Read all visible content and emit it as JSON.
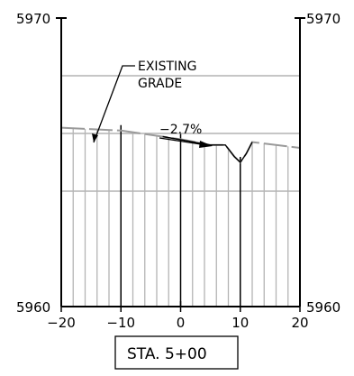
{
  "chart_data": {
    "type": "cross-section",
    "station_label": "STA. 5+00",
    "x_ticks": [
      "−20",
      "−10",
      "0",
      "10",
      "20"
    ],
    "x_range": [
      -20,
      20
    ],
    "y_range": [
      5960,
      5970
    ],
    "y_labels": {
      "top_left": "5970",
      "top_right": "5970",
      "bottom_left": "5960",
      "bottom_right": "5960"
    },
    "reference_lines_elev": [
      5964,
      5966,
      5968
    ],
    "annotations": {
      "existing_grade_line1": "EXISTING",
      "existing_grade_line2": "GRADE",
      "slope": "−2.7%"
    },
    "existing_grade": [
      {
        "x": -20,
        "y": 5966.2
      },
      {
        "x": -10,
        "y": 5966.1
      },
      {
        "x": 0,
        "y": 5965.8
      },
      {
        "x": 5,
        "y": 5965.6
      },
      {
        "x": 7.5,
        "y": 5965.6
      },
      {
        "x": 9,
        "y": 5965.2
      },
      {
        "x": 10,
        "y": 5965.0
      },
      {
        "x": 11,
        "y": 5965.3
      },
      {
        "x": 12,
        "y": 5965.7
      },
      {
        "x": 20,
        "y": 5965.5
      }
    ],
    "colors": {
      "ink": "#000000",
      "grade": "#9a9a9a",
      "grid": "#b4b4b4"
    }
  }
}
